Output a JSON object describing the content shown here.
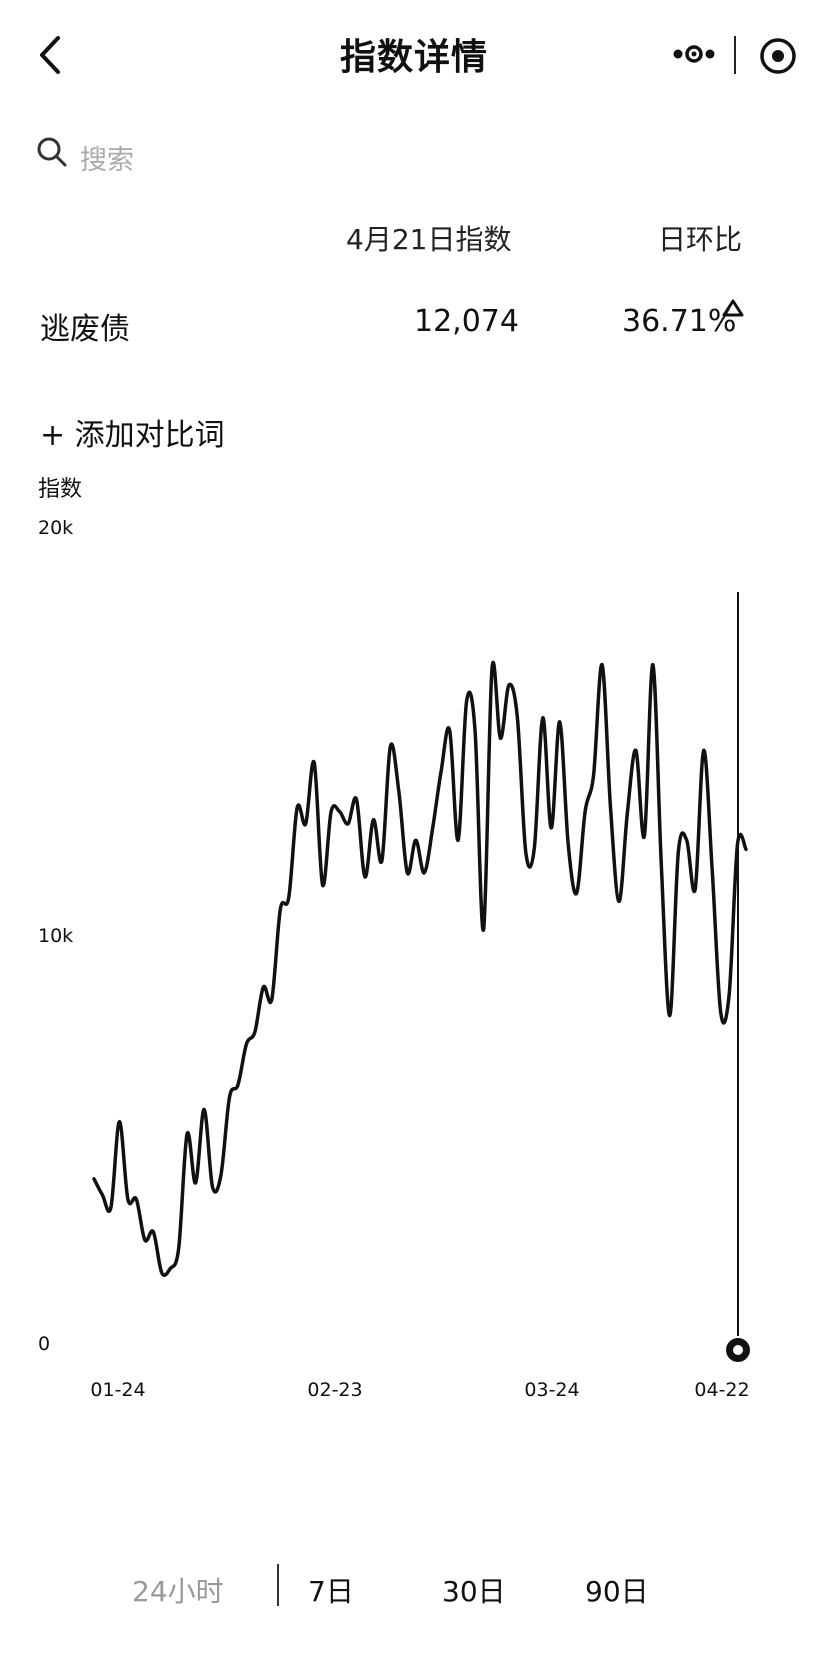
{
  "header": {
    "title": "指数详情",
    "back_icon": "chevron-left-icon",
    "more_icon": "more-dots-icon",
    "target_icon": "record-target-icon"
  },
  "search": {
    "placeholder": "搜索",
    "icon": "search-icon"
  },
  "table": {
    "col_index": "4月21日指数",
    "col_change": "日环比",
    "keyword": "逃废债",
    "index_value": "12,074",
    "change_value": "36.71%",
    "trend_icon": "triangle-up-icon"
  },
  "add_compare": "+ 添加对比词",
  "chart_data": {
    "type": "line",
    "ylabel": "指数",
    "yticks": [
      "20k",
      "10k",
      "0"
    ],
    "ylim": [
      0,
      20000
    ],
    "xticks": [
      "01-24",
      "02-23",
      "03-24",
      "04-22"
    ],
    "grid": false,
    "series": [
      {
        "values": [
          4000,
          3600,
          3300,
          5400,
          3500,
          3500,
          2500,
          2700,
          1700,
          1800,
          2300,
          5100,
          3900,
          5700,
          3800,
          4100,
          6000,
          6300,
          7300,
          7600,
          8700,
          8400,
          10600,
          10900,
          13100,
          12700,
          14200,
          11200,
          13000,
          13000,
          12700,
          13300,
          11400,
          12800,
          11800,
          14600,
          13500,
          11500,
          12300,
          11500,
          12600,
          14000,
          15000,
          12300,
          15700,
          15000,
          10100,
          16500,
          14800,
          16100,
          15300,
          12000,
          12100,
          15300,
          12600,
          15200,
          12200,
          11000,
          13000,
          13900,
          16600,
          13100,
          10800,
          13000,
          14500,
          12400,
          16600,
          11700,
          8000,
          12000,
          12300,
          11100,
          14500,
          11600,
          8100,
          8500,
          12200,
          12074
        ]
      }
    ],
    "selected_point": {
      "date": "04-21",
      "value": 12074
    }
  },
  "range_tabs": [
    "24小时",
    "7日",
    "30日",
    "90日"
  ],
  "colors": {
    "line": "#111111",
    "muted": "#999999"
  }
}
